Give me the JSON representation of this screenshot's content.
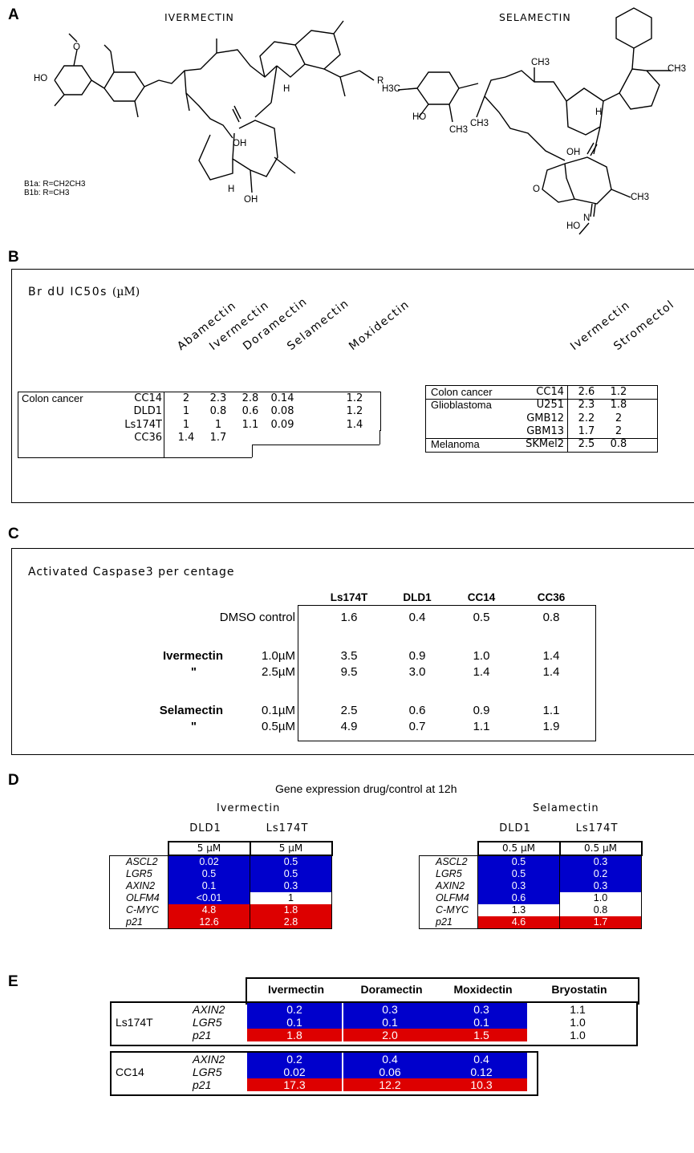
{
  "panels": {
    "a": "A",
    "b": "B",
    "c": "C",
    "d": "D",
    "e": "E"
  },
  "panel_a": {
    "ivermectin_title": "IVERMECTIN",
    "selamectin_title": "SELAMECTIN",
    "ivermectin_notes": [
      "B1a: R=CH2CH3",
      "B1b: R=CH3"
    ],
    "ivermectin_atoms": {
      "ho": "HO",
      "o": "O",
      "r": "R",
      "oh1": "OH",
      "h1": "H",
      "h2": "H",
      "oh2": "OH"
    },
    "selamectin_atoms": {
      "ch3_top": "CH3",
      "ch3_right": "CH3",
      "h3co": "H3C",
      "ho": "HO",
      "ch3a": "CH3",
      "ch3b": "CH3",
      "h": "H",
      "oh": "OH",
      "o": "O",
      "ch3_ring": "CH3",
      "n": "N",
      "hon": "HO"
    }
  },
  "panel_b": {
    "title_main": "Br dU IC50s",
    "title_unit": "(µM)",
    "left": {
      "headers": [
        "Abamectin",
        "Ivermectin",
        "Doramectin",
        "Selamectin",
        "Moxidectin"
      ],
      "group": "Colon cancer",
      "rows": [
        {
          "cell": "CC14",
          "values": [
            "2",
            "2.3",
            "2.8",
            "0.14",
            "1.2"
          ]
        },
        {
          "cell": "DLD1",
          "values": [
            "1",
            "0.8",
            "0.6",
            "0.08",
            "1.2"
          ]
        },
        {
          "cell": "Ls174T",
          "values": [
            "1",
            "1",
            "1.1",
            "0.09",
            "1.4"
          ]
        },
        {
          "cell": "CC36",
          "values": [
            "1.4",
            "1.7"
          ]
        }
      ]
    },
    "right": {
      "headers": [
        "Ivermectin",
        "Stromectol"
      ],
      "rows": [
        {
          "group": "Colon cancer",
          "cell": "CC14",
          "values": [
            "2.6",
            "1.2"
          ]
        },
        {
          "group": "Glioblastoma",
          "cell": "U251",
          "values": [
            "2.3",
            "1.8"
          ]
        },
        {
          "group": "",
          "cell": "GMB12",
          "values": [
            "2.2",
            "2"
          ]
        },
        {
          "group": "",
          "cell": "GBM13",
          "values": [
            "1.7",
            "2"
          ]
        },
        {
          "group": "Melanoma",
          "cell": "SKMel2",
          "values": [
            "2.5",
            "0.8"
          ]
        }
      ]
    }
  },
  "panel_c": {
    "title": "Activated Caspase3 per centage",
    "columns": [
      "Ls174T",
      "DLD1",
      "CC14",
      "CC36"
    ],
    "rows": [
      {
        "drug": "",
        "dose": "DMSO control",
        "values": [
          "1.6",
          "0.4",
          "0.5",
          "0.8"
        ]
      },
      {
        "drug": "Ivermectin",
        "dose": "1.0µM",
        "values": [
          "3.5",
          "0.9",
          "1.0",
          "1.4"
        ]
      },
      {
        "drug": "\"",
        "dose": "2.5µM",
        "values": [
          "9.5",
          "3.0",
          "1.4",
          "1.4"
        ]
      },
      {
        "drug": "Selamectin",
        "dose": "0.1µM",
        "values": [
          "2.5",
          "0.6",
          "0.9",
          "1.1"
        ]
      },
      {
        "drug": "\"",
        "dose": "0.5µM",
        "values": [
          "4.9",
          "0.7",
          "1.1",
          "1.9"
        ]
      }
    ]
  },
  "panel_d": {
    "title": "Gene expression drug/control at 12h",
    "ivermectin": {
      "drug": "Ivermectin",
      "cells": [
        "DLD1",
        "Ls174T"
      ],
      "doses": [
        "5 µM",
        "5 µM"
      ],
      "rows": [
        {
          "gene": "ASCL2",
          "values": [
            "0.02",
            "0.5"
          ],
          "colors": [
            "blue",
            "blue"
          ]
        },
        {
          "gene": "LGR5",
          "values": [
            "0.5",
            "0.5"
          ],
          "colors": [
            "blue",
            "blue"
          ]
        },
        {
          "gene": "AXIN2",
          "values": [
            "0.1",
            "0.3"
          ],
          "colors": [
            "blue",
            "blue"
          ]
        },
        {
          "gene": "OLFM4",
          "values": [
            "<0.01",
            "1"
          ],
          "colors": [
            "blue",
            "white"
          ]
        },
        {
          "gene": "C-MYC",
          "values": [
            "4.8",
            "1.8"
          ],
          "colors": [
            "red",
            "red"
          ]
        },
        {
          "gene": "p21",
          "values": [
            "12.6",
            "2.8"
          ],
          "colors": [
            "red",
            "red"
          ]
        }
      ]
    },
    "selamectin": {
      "drug": "Selamectin",
      "cells": [
        "DLD1",
        "Ls174T"
      ],
      "doses": [
        "0.5 µM",
        "0.5 µM"
      ],
      "rows": [
        {
          "gene": "ASCL2",
          "values": [
            "0.5",
            "0.3"
          ],
          "colors": [
            "blue",
            "blue"
          ]
        },
        {
          "gene": "LGR5",
          "values": [
            "0.5",
            "0.2"
          ],
          "colors": [
            "blue",
            "blue"
          ]
        },
        {
          "gene": "AXIN2",
          "values": [
            "0.3",
            "0.3"
          ],
          "colors": [
            "blue",
            "blue"
          ]
        },
        {
          "gene": "OLFM4",
          "values": [
            "0.6",
            "1.0"
          ],
          "colors": [
            "blue",
            "white"
          ]
        },
        {
          "gene": "C-MYC",
          "values": [
            "1.3",
            "0.8"
          ],
          "colors": [
            "white",
            "white"
          ]
        },
        {
          "gene": "p21",
          "values": [
            "4.6",
            "1.7"
          ],
          "colors": [
            "red",
            "red"
          ]
        }
      ]
    }
  },
  "panel_e": {
    "columns": [
      "Ivermectin",
      "Doramectin",
      "Moxidectin",
      "Bryostatin"
    ],
    "ls174t": {
      "cell": "Ls174T",
      "rows": [
        {
          "gene": "AXIN2",
          "values": [
            "0.2",
            "0.3",
            "0.3",
            "1.1"
          ],
          "colors": [
            "blue",
            "blue",
            "blue",
            "white"
          ]
        },
        {
          "gene": "LGR5",
          "values": [
            "0.1",
            "0.1",
            "0.1",
            "1.0"
          ],
          "colors": [
            "blue",
            "blue",
            "blue",
            "white"
          ]
        },
        {
          "gene": "p21",
          "values": [
            "1.8",
            "2.0",
            "1.5",
            "1.0"
          ],
          "colors": [
            "red",
            "red",
            "red",
            "white"
          ]
        }
      ]
    },
    "cc14": {
      "cell": "CC14",
      "rows": [
        {
          "gene": "AXIN2",
          "values": [
            "0.2",
            "0.4",
            "0.4"
          ],
          "colors": [
            "blue",
            "blue",
            "blue"
          ]
        },
        {
          "gene": "LGR5",
          "values": [
            "0.02",
            "0.06",
            "0.12"
          ],
          "colors": [
            "blue",
            "blue",
            "blue"
          ]
        },
        {
          "gene": "p21",
          "values": [
            "17.3",
            "12.2",
            "10.3"
          ],
          "colors": [
            "red",
            "red",
            "red"
          ]
        }
      ]
    }
  }
}
